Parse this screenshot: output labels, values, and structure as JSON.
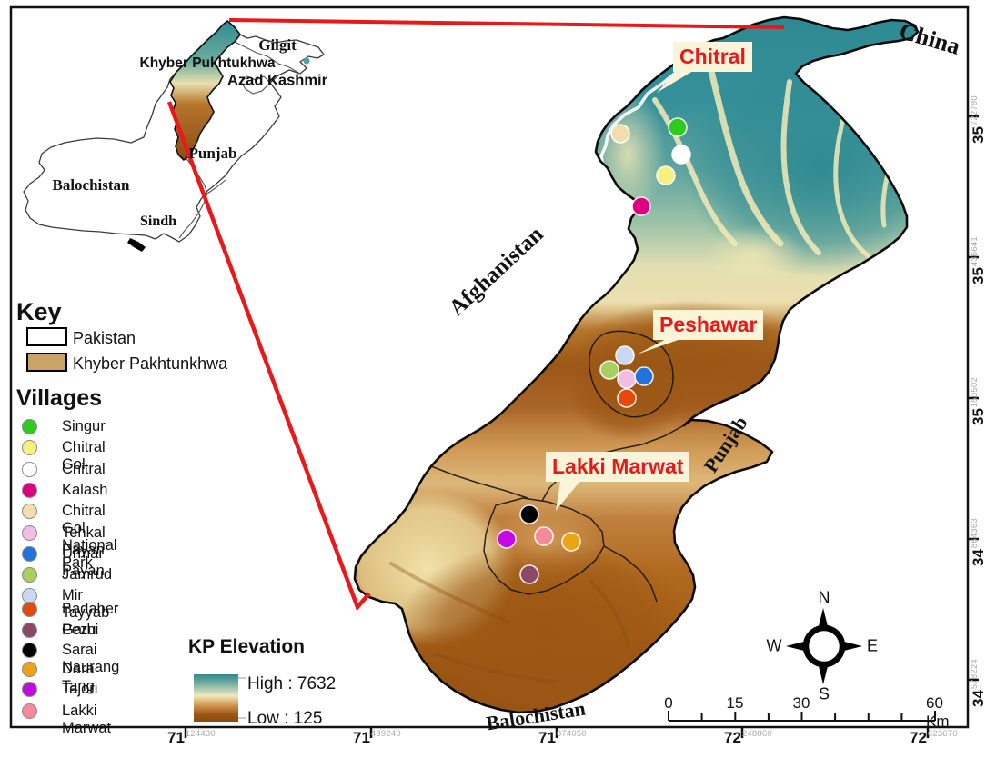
{
  "colors": {
    "accent_red": "#e9191b",
    "callout_bg": "#faf5d8",
    "kp_fill_key": "#c9a466"
  },
  "inset_map": {
    "regions": [
      {
        "name": "Gilgit"
      },
      {
        "name": "Khyber Pukhtukhwa"
      },
      {
        "name": "Azad Kashmir"
      },
      {
        "name": "Punjab"
      },
      {
        "name": "Balochistan"
      },
      {
        "name": "Sindh"
      }
    ]
  },
  "main_map": {
    "callouts": [
      {
        "id": "chitral",
        "label": "Chitral"
      },
      {
        "id": "peshawar",
        "label": "Peshawar"
      },
      {
        "id": "lakki-marwat",
        "label": "Lakki Marwat"
      }
    ],
    "neighbors": [
      {
        "id": "china",
        "label": "China"
      },
      {
        "id": "afghanistan",
        "label": "Afghanistan"
      },
      {
        "id": "punjab",
        "label": "Punjab"
      },
      {
        "id": "balochistan",
        "label": "Balochistan"
      }
    ]
  },
  "key": {
    "title": "Key",
    "items": [
      {
        "label": "Pakistan",
        "fill": "#ffffff"
      },
      {
        "label": "Khyber Pakhtunkhwa",
        "fill": "#c9a466"
      }
    ]
  },
  "villages": {
    "title": "Villages",
    "items": [
      {
        "name": "Singur",
        "color": "#2ecb1f"
      },
      {
        "name": "Chitral Gol",
        "color": "#f6f07c"
      },
      {
        "name": "Chitral",
        "color": "#ffffff"
      },
      {
        "name": "Kalash",
        "color": "#dc0080"
      },
      {
        "name": "Chitral Gol National Park",
        "color": "#f2ddb0"
      },
      {
        "name": "Tehkal Payan",
        "color": "#f2bce4"
      },
      {
        "name": "Urmar Payan",
        "color": "#2172dd"
      },
      {
        "name": "Jamrud",
        "color": "#a9d05f"
      },
      {
        "name": "Mir Tayyab Garhi",
        "color": "#cbd8f1"
      },
      {
        "name": "Badaber",
        "color": "#e7490d"
      },
      {
        "name": "Pezu",
        "color": "#8b4a63"
      },
      {
        "name": "Sarai Naurang",
        "color": "#000000"
      },
      {
        "name": "Dara Tang",
        "color": "#eaa414"
      },
      {
        "name": "Tajori",
        "color": "#c609e2"
      },
      {
        "name": "Lakki Marwat",
        "color": "#f58a9d"
      }
    ]
  },
  "elevation_legend": {
    "title": "KP Elevation",
    "high_label": "High : 7632",
    "low_label": "Low : 125",
    "gradient": [
      "#35858e",
      "#7fb5a5",
      "#f0e9c0",
      "#d8a35c",
      "#9d5614",
      "#8a4a10"
    ]
  },
  "compass": {
    "n": "N",
    "s": "S",
    "e": "E",
    "w": "W"
  },
  "scale_bar": {
    "labels": [
      "0",
      "15",
      "30",
      "60 Km"
    ]
  },
  "axes": {
    "bottom": [
      {
        "deg": "71",
        "min": "124430"
      },
      {
        "deg": "71",
        "min": "499240"
      },
      {
        "deg": "71",
        "min": "874050"
      },
      {
        "deg": "72",
        "min": "248860"
      },
      {
        "deg": "72",
        "min": "623670"
      }
    ],
    "right": [
      {
        "deg": "35",
        "min": "722780"
      },
      {
        "deg": "35",
        "min": "436641"
      },
      {
        "deg": "35",
        "min": "150502"
      },
      {
        "deg": "34",
        "min": "864363"
      },
      {
        "deg": "34",
        "min": "578224"
      }
    ]
  }
}
